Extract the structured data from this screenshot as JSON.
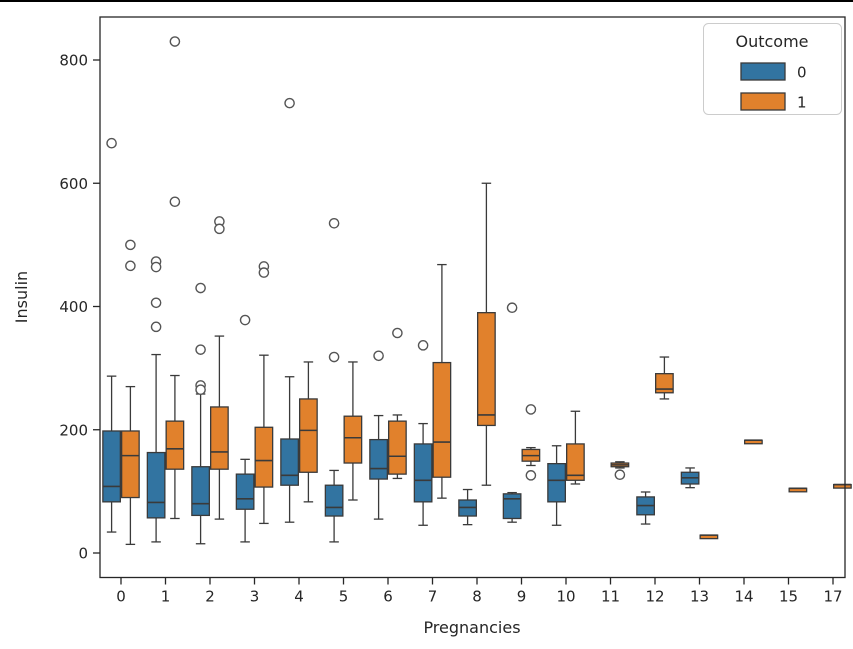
{
  "window": {
    "top_border_color": "#000000"
  },
  "axes": {
    "xlabel": "Pregnancies",
    "ylabel": "Insulin",
    "frame_color": "#262626",
    "background": "#ffffff"
  },
  "chart_data": {
    "type": "box",
    "title": "",
    "xlabel": "Pregnancies",
    "ylabel": "Insulin",
    "categories": [
      "0",
      "1",
      "2",
      "3",
      "4",
      "5",
      "6",
      "7",
      "8",
      "9",
      "10",
      "11",
      "12",
      "13",
      "14",
      "15",
      "17"
    ],
    "yticks": [
      0,
      200,
      400,
      600,
      800
    ],
    "ylim": [
      -39,
      871
    ],
    "grid": false,
    "legend": {
      "title": "Outcome",
      "position": "upper right",
      "entries": [
        {
          "label": "0",
          "color": "#3274a1"
        },
        {
          "label": "1",
          "color": "#e1812c"
        }
      ]
    },
    "box_edge_color": "#3a3a3a",
    "flier_color": "#555555",
    "series": [
      {
        "name": "0",
        "color": "#3274a1",
        "boxes": [
          {
            "cat": "0",
            "lo": 34,
            "q1": 83,
            "med": 108,
            "q3": 198,
            "hi": 287,
            "fliers": [
              665
            ]
          },
          {
            "cat": "1",
            "lo": 18,
            "q1": 57,
            "med": 82,
            "q3": 163,
            "hi": 322,
            "fliers": [
              473,
              464,
              406,
              367
            ]
          },
          {
            "cat": "2",
            "lo": 15,
            "q1": 61,
            "med": 80,
            "q3": 140,
            "hi": 258,
            "fliers": [
              430,
              330,
              272,
              265
            ]
          },
          {
            "cat": "3",
            "lo": 18,
            "q1": 71,
            "med": 88,
            "q3": 128,
            "hi": 152,
            "fliers": [
              378
            ]
          },
          {
            "cat": "4",
            "lo": 50,
            "q1": 110,
            "med": 126,
            "q3": 185,
            "hi": 286,
            "fliers": [
              730
            ]
          },
          {
            "cat": "5",
            "lo": 18,
            "q1": 60,
            "med": 74,
            "q3": 110,
            "hi": 134,
            "fliers": [
              535,
              318
            ]
          },
          {
            "cat": "6",
            "lo": 55,
            "q1": 120,
            "med": 137,
            "q3": 184,
            "hi": 223,
            "fliers": [
              320
            ]
          },
          {
            "cat": "7",
            "lo": 45,
            "q1": 83,
            "med": 118,
            "q3": 177,
            "hi": 210,
            "fliers": [
              337
            ]
          },
          {
            "cat": "8",
            "lo": 46,
            "q1": 60,
            "med": 74,
            "q3": 86,
            "hi": 103,
            "fliers": []
          },
          {
            "cat": "9",
            "lo": 50,
            "q1": 56,
            "med": 88,
            "q3": 96,
            "hi": 98,
            "fliers": [
              398
            ]
          },
          {
            "cat": "10",
            "lo": 45,
            "q1": 83,
            "med": 118,
            "q3": 145,
            "hi": 174,
            "fliers": []
          },
          {
            "cat": "12",
            "lo": 47,
            "q1": 62,
            "med": 77,
            "q3": 91,
            "hi": 99,
            "fliers": []
          },
          {
            "cat": "13",
            "lo": 106,
            "q1": 112,
            "med": 122,
            "q3": 131,
            "hi": 138,
            "fliers": []
          }
        ]
      },
      {
        "name": "1",
        "color": "#e1812c",
        "boxes": [
          {
            "cat": "0",
            "lo": 14,
            "q1": 90,
            "med": 158,
            "q3": 198,
            "hi": 270,
            "fliers": [
              500,
              466
            ]
          },
          {
            "cat": "1",
            "lo": 56,
            "q1": 136,
            "med": 169,
            "q3": 214,
            "hi": 288,
            "fliers": [
              830,
              570
            ]
          },
          {
            "cat": "2",
            "lo": 55,
            "q1": 136,
            "med": 164,
            "q3": 237,
            "hi": 352,
            "fliers": [
              538,
              526
            ]
          },
          {
            "cat": "3",
            "lo": 48,
            "q1": 107,
            "med": 150,
            "q3": 204,
            "hi": 321,
            "fliers": [
              465,
              455
            ]
          },
          {
            "cat": "4",
            "lo": 83,
            "q1": 131,
            "med": 199,
            "q3": 250,
            "hi": 310,
            "fliers": []
          },
          {
            "cat": "5",
            "lo": 86,
            "q1": 146,
            "med": 187,
            "q3": 222,
            "hi": 310,
            "fliers": []
          },
          {
            "cat": "6",
            "lo": 121,
            "q1": 128,
            "med": 157,
            "q3": 214,
            "hi": 224,
            "fliers": [
              357
            ]
          },
          {
            "cat": "7",
            "lo": 89,
            "q1": 123,
            "med": 180,
            "q3": 309,
            "hi": 468,
            "fliers": []
          },
          {
            "cat": "8",
            "lo": 110,
            "q1": 207,
            "med": 224,
            "q3": 390,
            "hi": 600,
            "fliers": []
          },
          {
            "cat": "9",
            "lo": 142,
            "q1": 149,
            "med": 158,
            "q3": 168,
            "hi": 171,
            "fliers": [
              233,
              126
            ]
          },
          {
            "cat": "10",
            "lo": 112,
            "q1": 118,
            "med": 126,
            "q3": 177,
            "hi": 230,
            "fliers": []
          },
          {
            "cat": "11",
            "lo": 138,
            "q1": 140,
            "med": 143,
            "q3": 146,
            "hi": 148,
            "fliers": [
              127
            ]
          },
          {
            "cat": "12",
            "lo": 250,
            "q1": 260,
            "med": 266,
            "q3": 291,
            "hi": 318,
            "fliers": []
          },
          {
            "cat": "13",
            "lo": 29,
            "q1": 29,
            "med": 29,
            "q3": 29,
            "hi": 29,
            "fliers": []
          },
          {
            "cat": "14",
            "lo": 183,
            "q1": 183,
            "med": 183,
            "q3": 183,
            "hi": 183,
            "fliers": []
          },
          {
            "cat": "15",
            "lo": 105,
            "q1": 105,
            "med": 105,
            "q3": 105,
            "hi": 105,
            "fliers": []
          },
          {
            "cat": "17",
            "lo": 111,
            "q1": 111,
            "med": 111,
            "q3": 111,
            "hi": 111,
            "fliers": []
          }
        ]
      }
    ]
  }
}
